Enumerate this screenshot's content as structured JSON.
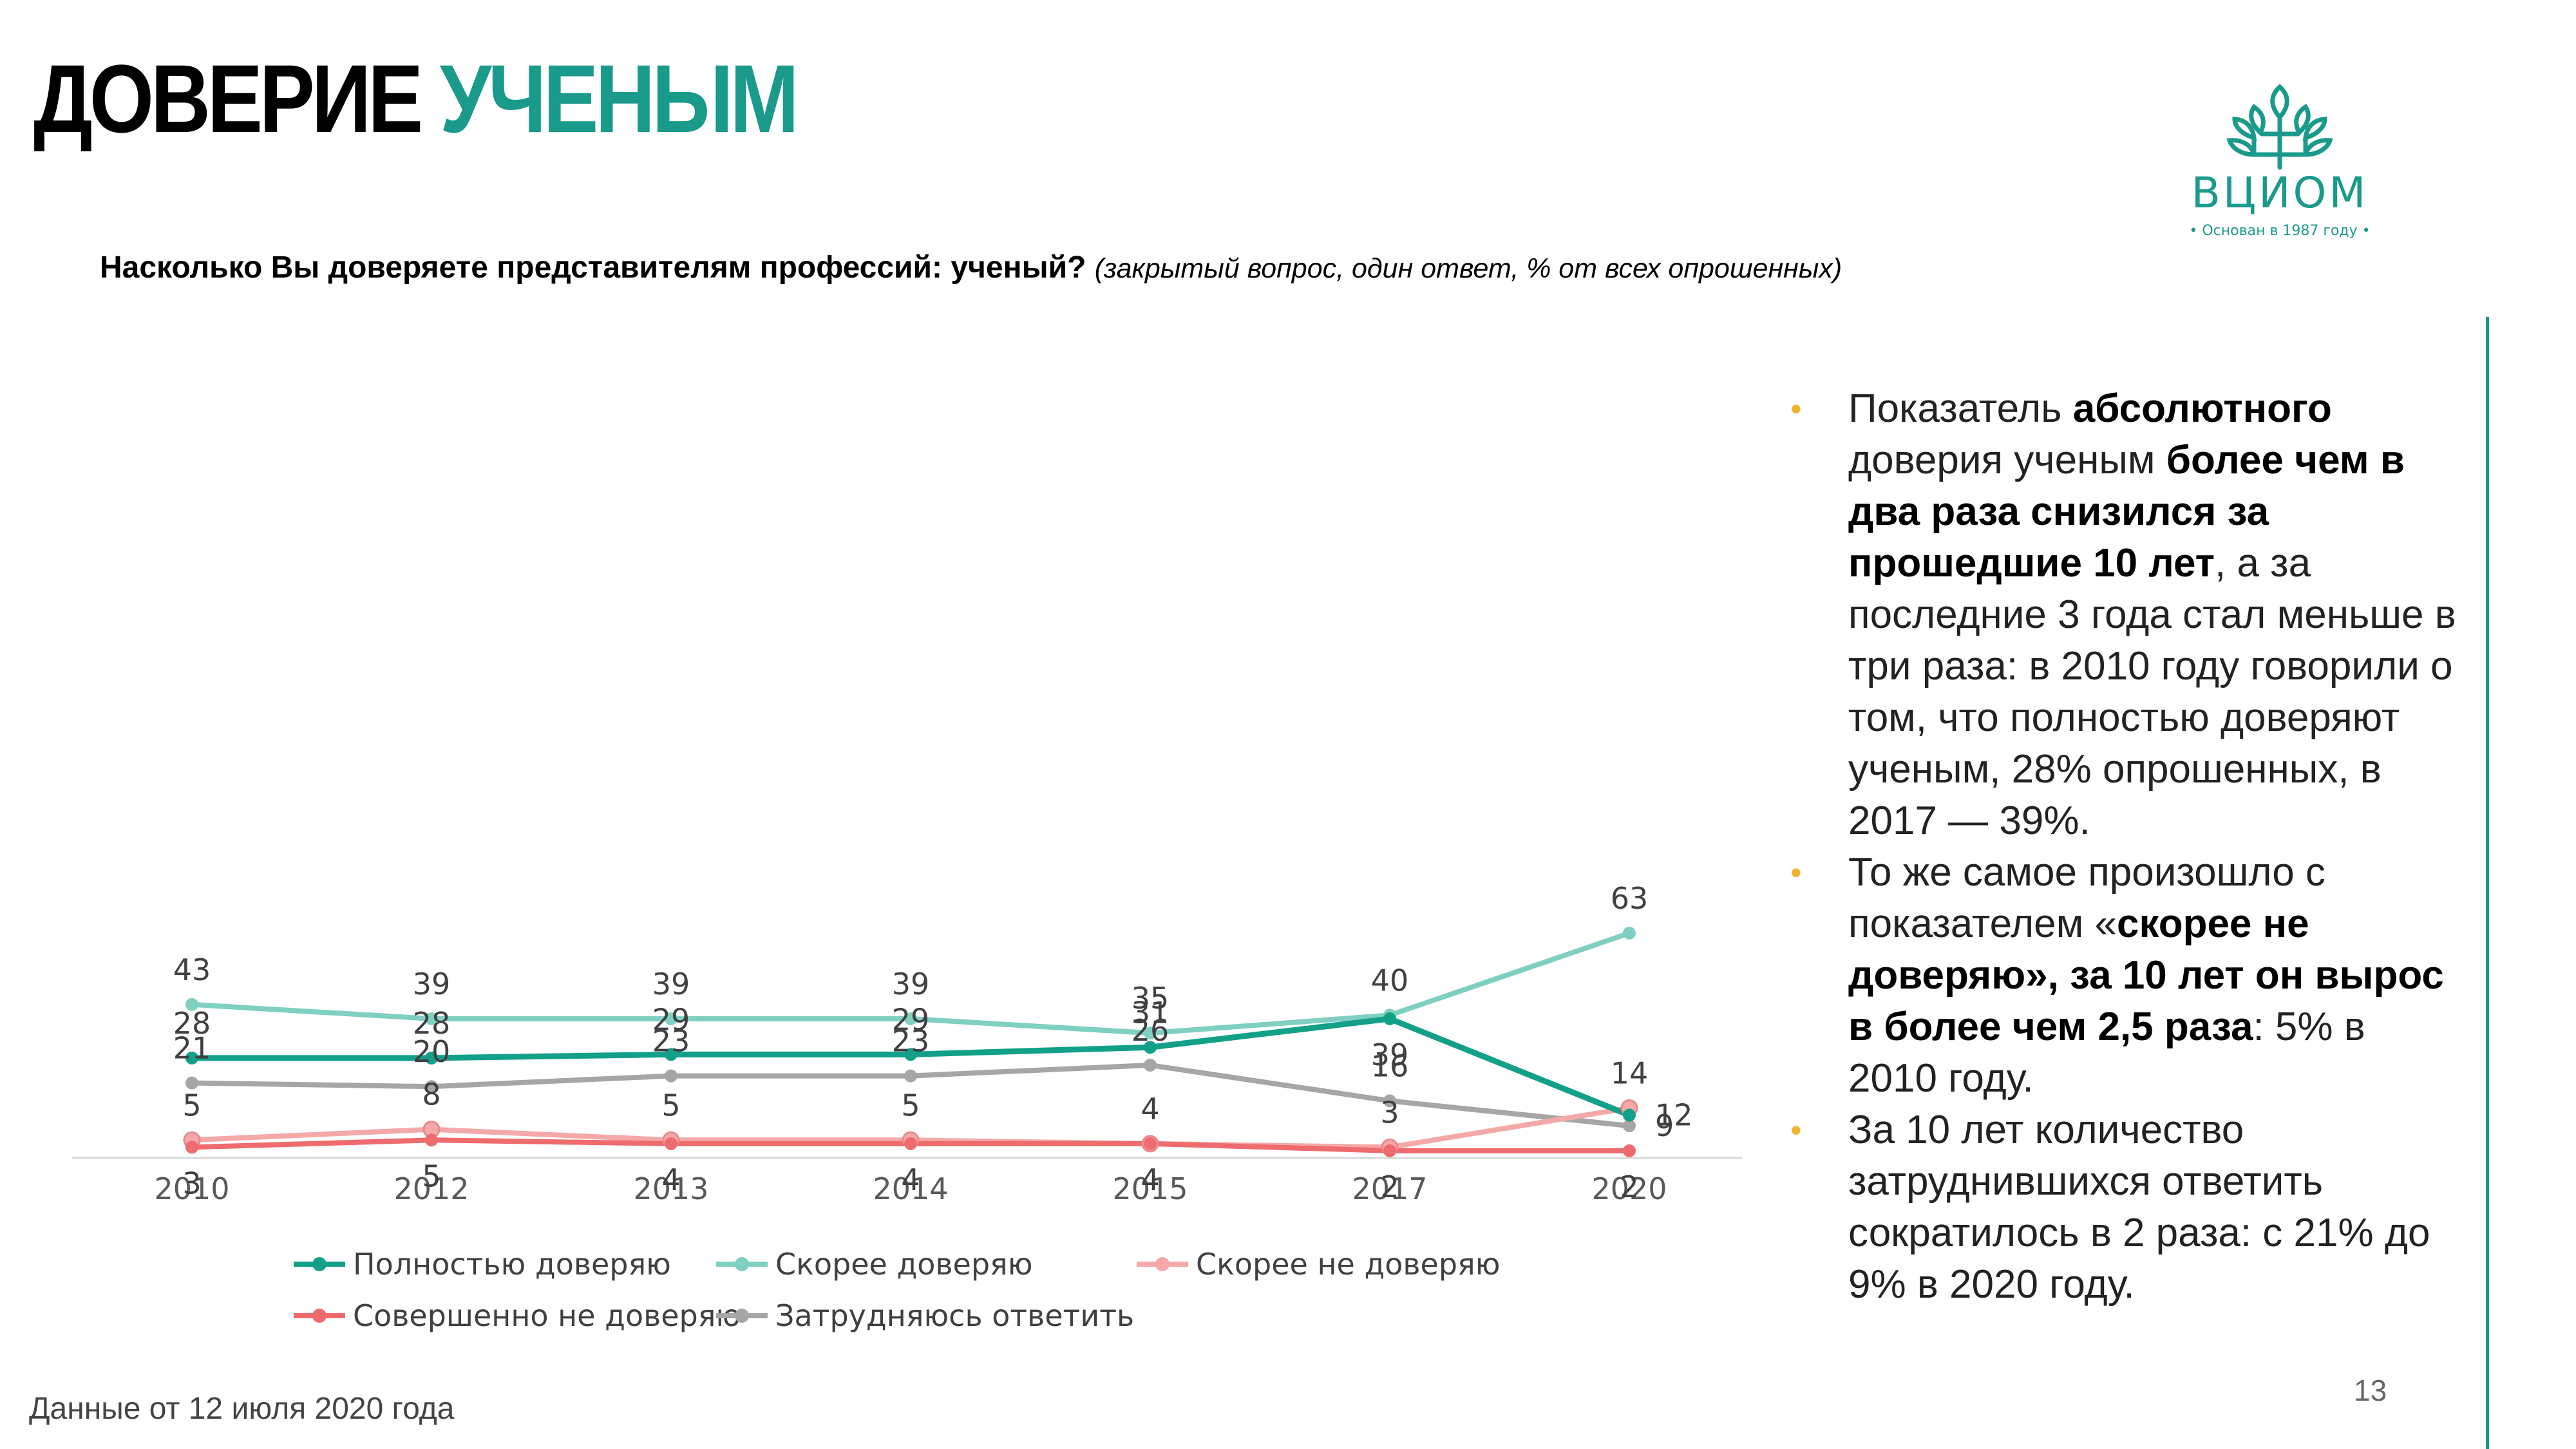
{
  "title": {
    "word1": "ДОВЕРИЕ",
    "word2": "УЧЕНЫМ"
  },
  "logo": {
    "name": "ВЦИОМ",
    "tagline": "• Основан в 1987 году •"
  },
  "question": {
    "text": "Насколько Вы доверяете представителям профессий: ученый?",
    "note": "(закрытый вопрос, один ответ, % от всех опрошенных)"
  },
  "chart_data": {
    "type": "line",
    "categories": [
      "2010",
      "2012",
      "2013",
      "2014",
      "2015",
      "2017",
      "2020"
    ],
    "ylim": [
      0,
      70
    ],
    "grid": false,
    "legend_position": "bottom",
    "series": [
      {
        "name": "Полностью доверяю",
        "color": "#13a089",
        "values": [
          28,
          28,
          29,
          29,
          31,
          39,
          12
        ],
        "label_pos": [
          "above",
          "above",
          "above",
          "above",
          "above",
          "below",
          "right"
        ]
      },
      {
        "name": "Скорее доверяю",
        "color": "#7fd0c2",
        "values": [
          43,
          39,
          39,
          39,
          35,
          40,
          63
        ],
        "label_pos": [
          "above",
          "above",
          "above",
          "above",
          "above",
          "above",
          "above"
        ]
      },
      {
        "name": "Скорее не доверяю",
        "color": "#f4a9a8",
        "values": [
          5,
          8,
          5,
          5,
          4,
          3,
          14
        ],
        "label_pos": [
          "above",
          "above",
          "above",
          "above",
          "above",
          "above",
          "above"
        ]
      },
      {
        "name": "Совершенно не доверяю",
        "color": "#ee6b6e",
        "values": [
          3,
          5,
          4,
          4,
          4,
          2,
          2
        ],
        "label_pos": [
          "below",
          "below",
          "below",
          "below",
          "below",
          "below",
          "below"
        ]
      },
      {
        "name": "Затрудняюсь ответить",
        "color": "#a6a6a6",
        "values": [
          21,
          20,
          23,
          23,
          26,
          16,
          9
        ],
        "label_pos": [
          "above",
          "above",
          "above",
          "above",
          "above",
          "above",
          "right"
        ]
      }
    ]
  },
  "bullets": [
    [
      {
        "t": "Показатель ",
        "b": false
      },
      {
        "t": "абсолютного",
        "b": true
      },
      {
        "t": " доверия ученым ",
        "b": false
      },
      {
        "t": "более чем в два раза снизился за прошедшие 10 лет",
        "b": true
      },
      {
        "t": ", а за последние 3 года стал меньше в три раза: в 2010 году говорили о том, что полностью доверяют ученым, 28% опрошенных, в 2017 — 39%.",
        "b": false
      }
    ],
    [
      {
        "t": "То же самое произошло с показателем «",
        "b": false
      },
      {
        "t": "скорее не доверяю», за 10 лет он вырос в более чем 2,5 раза",
        "b": true
      },
      {
        "t": ": 5% в 2010 году.",
        "b": false
      }
    ],
    [
      {
        "t": "За 10 лет количество затруднившихся ответить сократилось в 2 раза: с 21% до 9% в 2020 году.",
        "b": false
      }
    ]
  ],
  "footer": "Данные от 12 июля 2020 года",
  "page_number": "13",
  "colors": {
    "accent": "#1a9a8a",
    "bullet": "#f0b431"
  }
}
